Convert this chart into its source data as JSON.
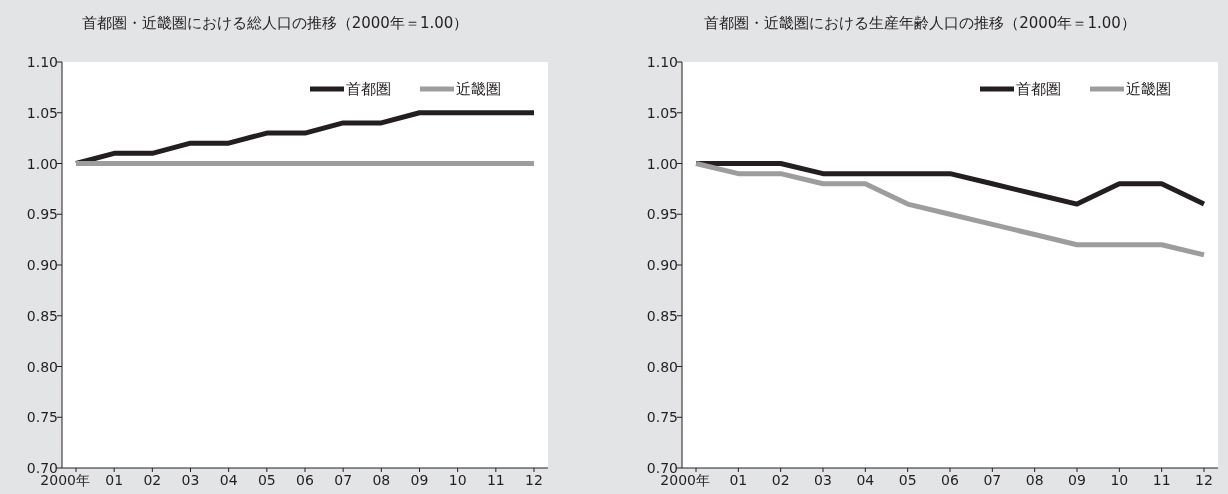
{
  "chart_data": [
    {
      "type": "line",
      "title": "首都圏・近畿圏における総人口の推移（2000年＝1.00）",
      "categories": [
        "2000年",
        "01",
        "02",
        "03",
        "04",
        "05",
        "06",
        "07",
        "08",
        "09",
        "10",
        "11",
        "12"
      ],
      "series": [
        {
          "name": "首都圏",
          "color": "#231f20",
          "values": [
            1.0,
            1.01,
            1.01,
            1.02,
            1.02,
            1.03,
            1.03,
            1.04,
            1.04,
            1.05,
            1.05,
            1.05,
            1.05
          ]
        },
        {
          "name": "近畿圏",
          "color": "#9d9d9d",
          "values": [
            1.0,
            1.0,
            1.0,
            1.0,
            1.0,
            1.0,
            1.0,
            1.0,
            1.0,
            1.0,
            1.0,
            1.0,
            1.0
          ]
        }
      ],
      "ylim": [
        0.7,
        1.1
      ],
      "yticks": [
        {
          "value": 0.7,
          "label": "0.70"
        },
        {
          "value": 0.75,
          "label": "0.75"
        },
        {
          "value": 0.8,
          "label": "0.80"
        },
        {
          "value": 0.85,
          "label": "0.85"
        },
        {
          "value": 0.9,
          "label": "0.90"
        },
        {
          "value": 0.95,
          "label": "0.95"
        },
        {
          "value": 1.0,
          "label": "1.00"
        },
        {
          "value": 1.05,
          "label": "1.05"
        },
        {
          "value": 1.1,
          "label": "1.10"
        }
      ],
      "legend": "top right"
    },
    {
      "type": "line",
      "title": "首都圏・近畿圏における生産年齢人口の推移（2000年＝1.00）",
      "categories": [
        "2000年",
        "01",
        "02",
        "03",
        "04",
        "05",
        "06",
        "07",
        "08",
        "09",
        "10",
        "11",
        "12"
      ],
      "series": [
        {
          "name": "首都圏",
          "color": "#231f20",
          "values": [
            1.0,
            1.0,
            1.0,
            0.99,
            0.99,
            0.99,
            0.99,
            0.98,
            0.97,
            0.96,
            0.98,
            0.98,
            0.96
          ]
        },
        {
          "name": "近畿圏",
          "color": "#9d9d9d",
          "values": [
            1.0,
            0.99,
            0.99,
            0.98,
            0.98,
            0.96,
            0.95,
            0.94,
            0.93,
            0.92,
            0.92,
            0.92,
            0.91
          ]
        }
      ],
      "ylim": [
        0.7,
        1.1
      ],
      "yticks": [
        {
          "value": 0.7,
          "label": "0.70"
        },
        {
          "value": 0.75,
          "label": "0.75"
        },
        {
          "value": 0.8,
          "label": "0.80"
        },
        {
          "value": 0.85,
          "label": "0.85"
        },
        {
          "value": 0.9,
          "label": "0.90"
        },
        {
          "value": 0.95,
          "label": "0.95"
        },
        {
          "value": 1.0,
          "label": "1.00"
        },
        {
          "value": 1.05,
          "label": "1.05"
        },
        {
          "value": 1.1,
          "label": "1.10"
        }
      ],
      "legend": "top right"
    }
  ]
}
